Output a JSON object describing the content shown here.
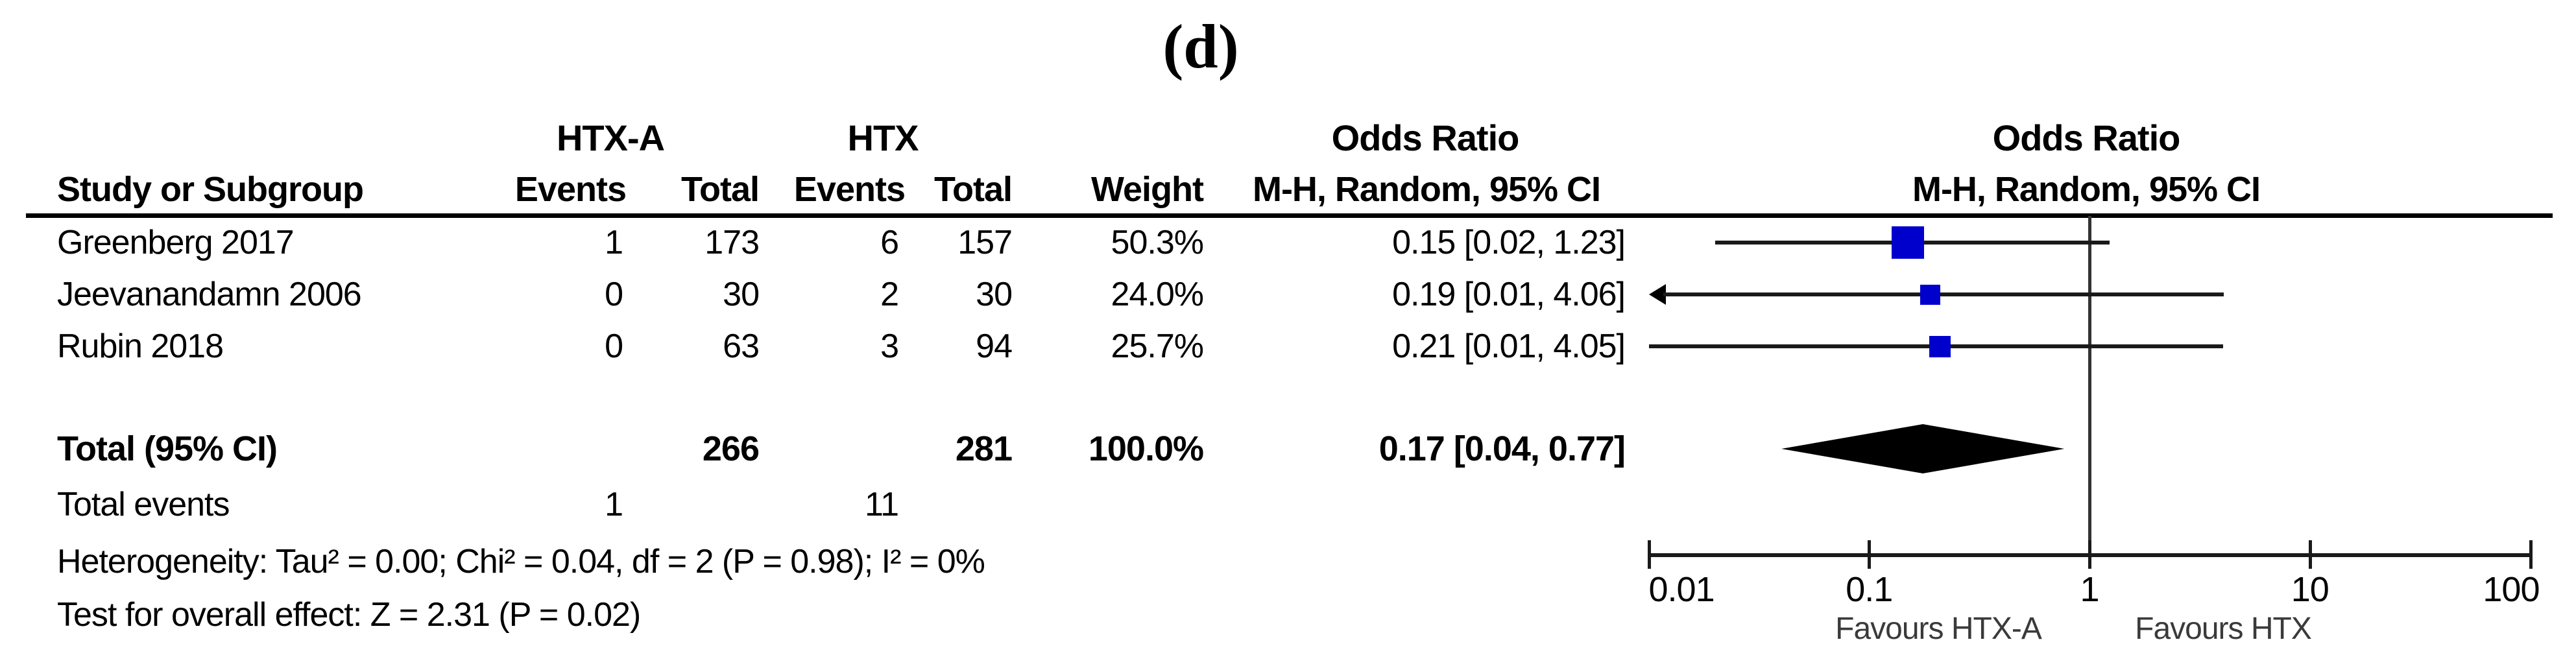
{
  "figure_label": "(d)",
  "table": {
    "group1_label": "HTX-A",
    "group2_label": "HTX",
    "or_col_header_line1": "Odds Ratio",
    "or_col_header_line2": "M-H, Random, 95% CI",
    "plot_header_line1": "Odds Ratio",
    "plot_header_line2": "M-H, Random, 95% CI",
    "col_headers": {
      "study": "Study or Subgroup",
      "events1": "Events",
      "total1": "Total",
      "events2": "Events",
      "total2": "Total",
      "weight": "Weight"
    },
    "rows": [
      {
        "study": "Greenberg 2017",
        "e1": "1",
        "t1": "173",
        "e2": "6",
        "t2": "157",
        "weight": "50.3%",
        "or_text": "0.15 [0.02, 1.23]"
      },
      {
        "study": "Jeevanandamn 2006",
        "e1": "0",
        "t1": "30",
        "e2": "2",
        "t2": "30",
        "weight": "24.0%",
        "or_text": "0.19 [0.01, 4.06]"
      },
      {
        "study": "Rubin 2018",
        "e1": "0",
        "t1": "63",
        "e2": "3",
        "t2": "94",
        "weight": "25.7%",
        "or_text": "0.21 [0.01, 4.05]"
      }
    ],
    "total_row": {
      "label": "Total (95% CI)",
      "t1": "266",
      "t2": "281",
      "weight": "100.0%",
      "or_text": "0.17 [0.04, 0.77]"
    },
    "total_events_row": {
      "label": "Total events",
      "e1": "1",
      "e2": "11"
    },
    "heterogeneity_text": "Heterogeneity: Tau² = 0.00; Chi² = 0.04, df = 2 (P = 0.98); I² = 0%",
    "overall_effect_text": "Test for overall effect: Z = 2.31 (P = 0.02)"
  },
  "chart_data": {
    "type": "scatter",
    "subtype": "forest-plot",
    "x_scale": "log10",
    "xlim": [
      0.01,
      100
    ],
    "axis_ticks": [
      0.01,
      0.1,
      1,
      10,
      100
    ],
    "axis_tick_labels": [
      "0.01",
      "0.1",
      "1",
      "10",
      "100"
    ],
    "null_line_value": 1,
    "favours_left": "Favours HTX-A",
    "favours_right": "Favours HTX",
    "effect_measure": "Odds Ratio, M-H, Random, 95% CI",
    "studies": [
      {
        "name": "Greenberg 2017",
        "or": 0.15,
        "ci_low": 0.02,
        "ci_high": 1.23,
        "weight_pct": 50.3,
        "arrow_low": false
      },
      {
        "name": "Jeevanandamn 2006",
        "or": 0.19,
        "ci_low": 0.01,
        "ci_high": 4.06,
        "weight_pct": 24.0,
        "arrow_low": true
      },
      {
        "name": "Rubin 2018",
        "or": 0.21,
        "ci_low": 0.01,
        "ci_high": 4.05,
        "weight_pct": 25.7,
        "arrow_low": false
      }
    ],
    "total": {
      "or": 0.17,
      "ci_low": 0.04,
      "ci_high": 0.77
    },
    "marker_color": "#0000CC",
    "line_color": "#1a1a1a"
  }
}
